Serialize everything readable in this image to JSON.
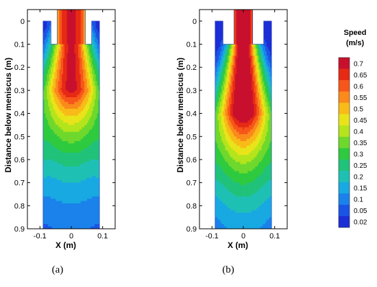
{
  "chart_data": {
    "type": "heatmap",
    "panels": [
      {
        "caption": "(a)",
        "xlabel": "X (m)",
        "ylabel": "Distance below meniscus (m)",
        "xlim": [
          -0.14,
          0.14
        ],
        "ylim": [
          0.9,
          -0.05
        ],
        "x_ticks": [
          "-0.1",
          "0",
          "0.1"
        ],
        "y_ticks": [
          "0",
          "0.1",
          "0.2",
          "0.3",
          "0.4",
          "0.5",
          "0.6",
          "0.7",
          "0.8",
          "0.9"
        ],
        "mold_half_width_m": 0.09,
        "nozzle_half_width_m": 0.045,
        "nozzle_depth_m": 0.1,
        "jet": {
          "core_speed": 0.72,
          "core_length_m": 0.28,
          "spread": 0.62
        }
      },
      {
        "caption": "(b)",
        "xlabel": "X (m)",
        "ylabel": "Distance below meniscus (m)",
        "xlim": [
          -0.14,
          0.14
        ],
        "ylim": [
          0.9,
          -0.05
        ],
        "x_ticks": [
          "-0.1",
          "0",
          "0.1"
        ],
        "y_ticks": [
          "0",
          "0.1",
          "0.2",
          "0.3",
          "0.4",
          "0.5",
          "0.6",
          "0.7",
          "0.8",
          "0.9"
        ],
        "mold_half_width_m": 0.09,
        "nozzle_half_width_m": 0.03,
        "nozzle_depth_m": 0.1,
        "jet": {
          "core_speed": 0.8,
          "core_length_m": 0.38,
          "spread": 0.52
        }
      }
    ],
    "colorbar": {
      "title": "Speed",
      "unit": "(m/s)",
      "levels": [
        "0.7",
        "0.65",
        "0.6",
        "0.55",
        "0.5",
        "0.45",
        "0.4",
        "0.35",
        "0.3",
        "0.25",
        "0.2",
        "0.15",
        "0.1",
        "0.05",
        "0.02"
      ],
      "colors": [
        "#c8102e",
        "#e62a14",
        "#f7561a",
        "#fa8a1c",
        "#f8bb18",
        "#e9e41a",
        "#b4e41c",
        "#6fd82c",
        "#2fca3f",
        "#21c27a",
        "#1fc0b4",
        "#18a9e2",
        "#1a82ea",
        "#1a54e6",
        "#1c2ed6"
      ]
    }
  }
}
